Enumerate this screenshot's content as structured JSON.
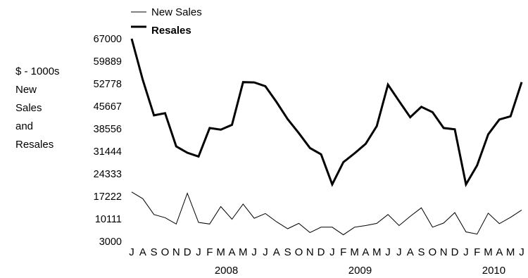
{
  "chart_data": {
    "type": "line",
    "ylabel_lines": [
      "$ - 1000s",
      "New",
      "Sales",
      "and",
      "Resales"
    ],
    "yticks": [
      "67000",
      "59889",
      "52778",
      "45667",
      "38556",
      "31444",
      "24333",
      "17222",
      "10111",
      "3000"
    ],
    "ylim": [
      3000,
      67000
    ],
    "x_month_labels": [
      "J",
      "A",
      "S",
      "O",
      "N",
      "D",
      "J",
      "F",
      "M",
      "A",
      "M",
      "J",
      "J",
      "A",
      "S",
      "O",
      "N",
      "D",
      "J",
      "F",
      "M",
      "A",
      "M",
      "J",
      "J",
      "A",
      "S",
      "O",
      "N",
      "D",
      "J",
      "F",
      "M",
      "A",
      "M",
      "J"
    ],
    "x_year_labels": [
      {
        "label": "2008",
        "index": 8.5
      },
      {
        "label": "2009",
        "index": 20.5
      },
      {
        "label": "2010",
        "index": 32.5
      }
    ],
    "legend_position": "top",
    "series": [
      {
        "name": "New Sales",
        "style": "thin",
        "color": "#000000",
        "values": [
          18600,
          16500,
          11500,
          10500,
          8500,
          18200,
          9000,
          8500,
          14000,
          10000,
          14800,
          10300,
          11800,
          9200,
          7000,
          8700,
          5800,
          7500,
          7500,
          5100,
          7500,
          8000,
          8700,
          11500,
          8000,
          10900,
          13600,
          7500,
          8800,
          12100,
          6000,
          5300,
          11900,
          8600,
          10600,
          12900
        ]
      },
      {
        "name": "Resales",
        "style": "bold",
        "color": "#000000",
        "values": [
          67000,
          54000,
          42800,
          43500,
          33000,
          31000,
          29800,
          38800,
          38300,
          39800,
          53300,
          53200,
          52000,
          47000,
          41600,
          37200,
          32500,
          30500,
          21000,
          28000,
          30800,
          33800,
          39400,
          52500,
          47300,
          42200,
          45500,
          43800,
          38800,
          38400,
          21000,
          27000,
          36800,
          41500,
          42500,
          53300
        ]
      }
    ]
  }
}
